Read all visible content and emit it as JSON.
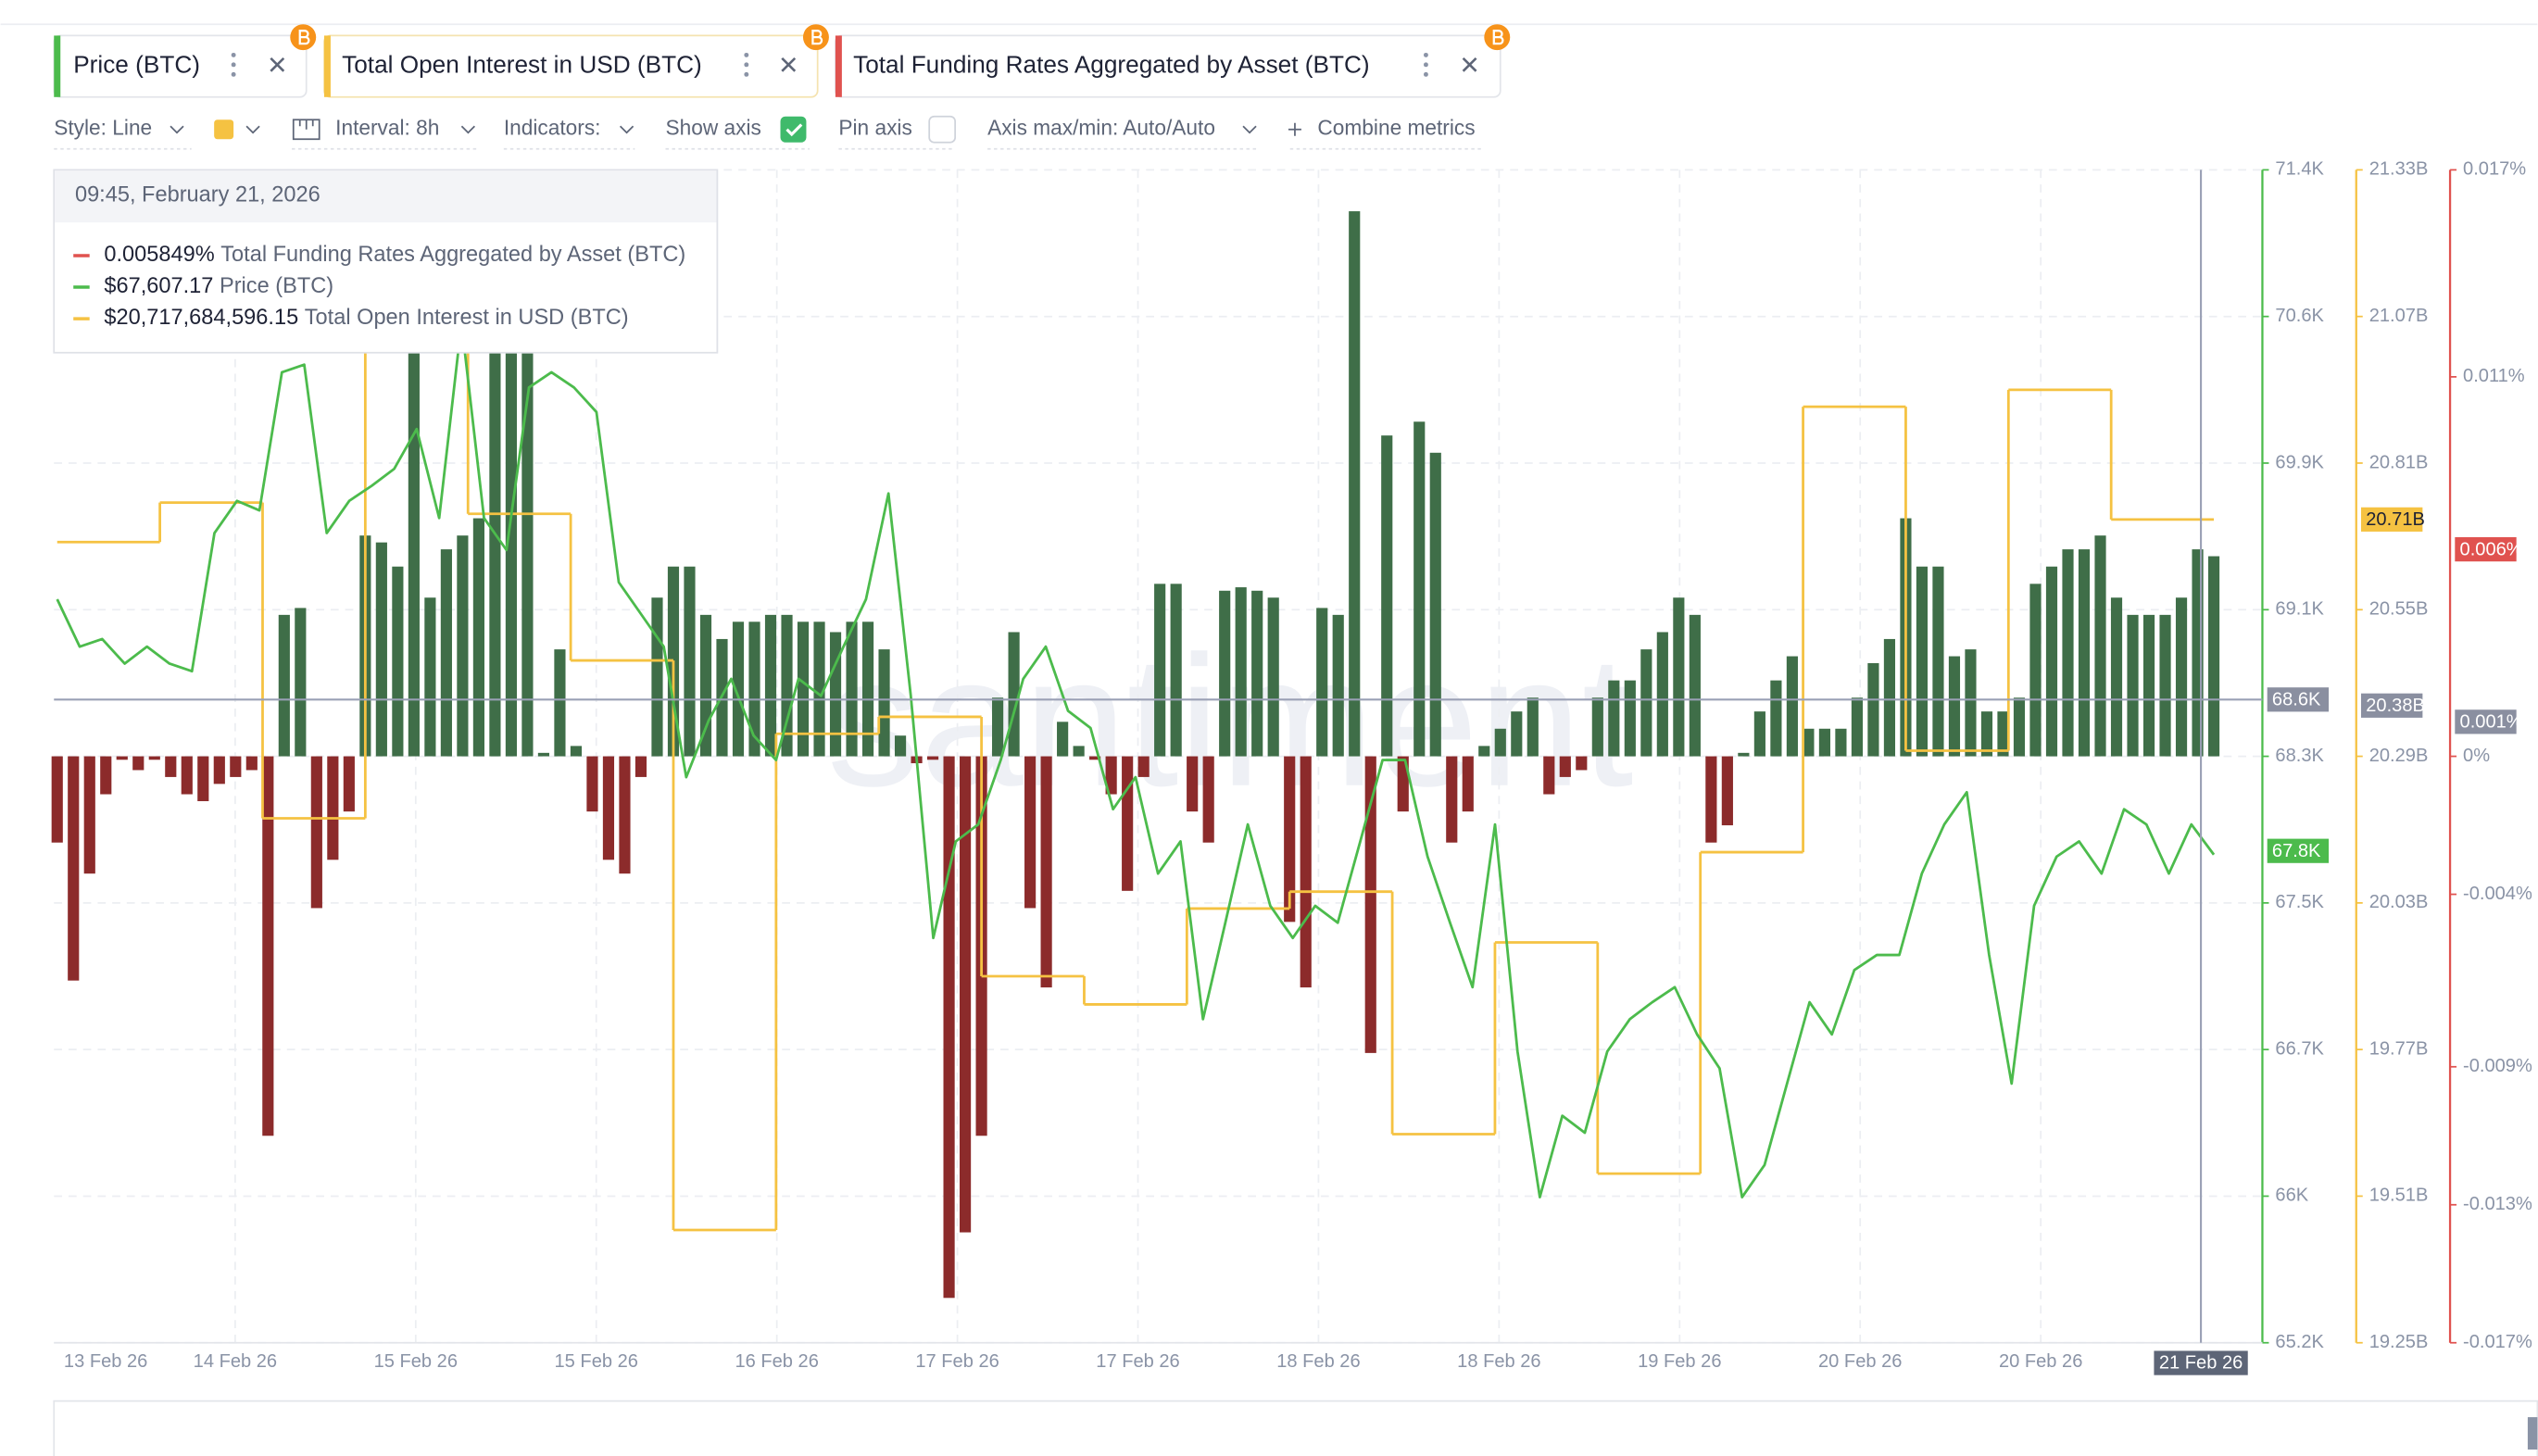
{
  "toolbar": {
    "style": "Style: Line",
    "interval": "Interval: 8h",
    "indicators": "Indicators:",
    "show_axis": "Show axis",
    "pin_axis": "Pin axis",
    "axis_maxmin": "Axis max/min: Auto/Auto",
    "combine": "Combine metrics"
  },
  "tooltip": {
    "time": "09:45, February 21, 2026",
    "rows": [
      {
        "series": 2,
        "value": "0.005849%"
      },
      {
        "series": 0,
        "value": "$67,607.17"
      },
      {
        "series": 1,
        "value": "$20,717,684,596.15"
      }
    ]
  },
  "chart_data": {
    "type": "line",
    "watermark": "santiment",
    "x_labels": [
      "13 Feb 26",
      "14 Feb 26",
      "15 Feb 26",
      "15 Feb 26",
      "16 Feb 26",
      "17 Feb 26",
      "17 Feb 26",
      "18 Feb 26",
      "18 Feb 26",
      "19 Feb 26",
      "20 Feb 26",
      "20 Feb 26"
    ],
    "crosshair_label": "21 Feb 26",
    "grid": true,
    "ylim": [
      65.2,
      71.4
    ],
    "yticks": [
      {
        "value": 65.2,
        "label": "65.2K"
      },
      {
        "value": 65.975,
        "label": "66K"
      },
      {
        "value": 66.75,
        "label": "66.7K"
      },
      {
        "value": 67.525,
        "label": "67.5K"
      },
      {
        "value": 68.3,
        "label": "68.3K"
      },
      {
        "value": 69.075,
        "label": "69.1K"
      },
      {
        "value": 69.85,
        "label": "69.9K"
      },
      {
        "value": 70.625,
        "label": "70.6K"
      },
      {
        "value": 71.4,
        "label": "71.4K"
      }
    ],
    "y2lim": [
      19.25,
      21.33
    ],
    "y2ticks": [
      {
        "value": 19.25,
        "label": "19.25B"
      },
      {
        "value": 19.51,
        "label": "19.51B"
      },
      {
        "value": 19.77,
        "label": "19.77B"
      },
      {
        "value": 20.03,
        "label": "20.03B"
      },
      {
        "value": 20.29,
        "label": "20.29B"
      },
      {
        "value": 20.55,
        "label": "20.55B"
      },
      {
        "value": 20.81,
        "label": "20.81B"
      },
      {
        "value": 21.07,
        "label": "21.07B"
      },
      {
        "value": 21.33,
        "label": "21.33B"
      }
    ],
    "y3lim": [
      -0.017,
      0.017
    ],
    "y3ticks": [
      {
        "value": -0.017,
        "label": "-0.017%"
      },
      {
        "value": -0.013,
        "label": "-0.013%"
      },
      {
        "value": -0.009,
        "label": "-0.009%"
      },
      {
        "value": -0.004,
        "label": "-0.004%"
      },
      {
        "value": 0,
        "label": "0%"
      },
      {
        "value": 0.011,
        "label": "0.011%"
      },
      {
        "value": 0.017,
        "label": "0.017%"
      }
    ],
    "badges": [
      {
        "axis": "y",
        "value": 68.6,
        "label": "68.6K",
        "color": "#8a8fa0",
        "crosshair": true
      },
      {
        "axis": "y",
        "value": 67.8,
        "label": "67.8K",
        "color": "#4cbb4c"
      },
      {
        "axis": "y2",
        "value": 20.71,
        "label": "20.71B",
        "color": "#f5c242"
      },
      {
        "axis": "y2",
        "value": 20.38,
        "label": "20.38B",
        "color": "#8a8fa0"
      },
      {
        "axis": "y3",
        "value": 0.006,
        "label": "0.006%",
        "color": "#e0524f"
      },
      {
        "axis": "y3",
        "value": 0.001,
        "label": "0.001%",
        "color": "#8a8fa0"
      }
    ],
    "series": [
      {
        "name": "Price (BTC)",
        "color": "#4cbb4c",
        "axis": "y",
        "style": "line",
        "values": [
          69.13,
          68.88,
          68.92,
          68.79,
          68.88,
          68.79,
          68.75,
          69.48,
          69.65,
          69.6,
          70.33,
          70.37,
          69.48,
          69.65,
          69.73,
          69.82,
          70.03,
          69.56,
          70.59,
          69.56,
          69.39,
          70.25,
          70.33,
          70.25,
          70.12,
          69.22,
          69.05,
          68.88,
          68.19,
          68.49,
          68.71,
          68.41,
          68.28,
          68.71,
          68.62,
          68.88,
          69.13,
          69.69,
          68.62,
          67.34,
          67.85,
          67.94,
          68.28,
          68.71,
          68.88,
          68.54,
          68.45,
          68.02,
          68.19,
          67.68,
          67.85,
          66.91,
          67.42,
          67.94,
          67.51,
          67.34,
          67.51,
          67.42,
          67.85,
          68.28,
          68.28,
          67.77,
          67.42,
          67.08,
          67.94,
          66.74,
          65.97,
          66.4,
          66.31,
          66.74,
          66.91,
          67.0,
          67.08,
          66.83,
          66.65,
          65.97,
          66.14,
          66.57,
          67.0,
          66.83,
          67.17,
          67.25,
          67.25,
          67.68,
          67.94,
          68.11,
          67.25,
          66.57,
          67.51,
          67.77,
          67.85,
          67.68,
          68.02,
          67.94,
          67.68,
          67.94,
          67.78
        ]
      },
      {
        "name": "Total Open Interest in USD (BTC)",
        "color": "#f5c242",
        "axis": "y2",
        "style": "step",
        "values": [
          20.67,
          20.74,
          20.18,
          21.07,
          20.72,
          20.46,
          19.45,
          20.33,
          20.36,
          19.9,
          19.85,
          20.02,
          20.05,
          19.62,
          19.96,
          19.55,
          20.12,
          20.91,
          20.3,
          20.94,
          20.71
        ]
      },
      {
        "name": "Total Funding Rates Aggregated by Asset (BTC)",
        "color": "#e0524f",
        "axis": "y3",
        "style": "bar",
        "positive_color": "#3f6e48",
        "negative_color": "#8c2b2b",
        "values": [
          -0.0025,
          -0.0065,
          -0.0034,
          -0.0011,
          -0.0001,
          -0.0004,
          -0.0001,
          -0.0006,
          -0.0011,
          -0.0013,
          -0.0008,
          -0.0006,
          -0.0004,
          -0.011,
          0.0041,
          0.0043,
          -0.0044,
          -0.003,
          -0.0016,
          0.0064,
          0.0062,
          0.0055,
          0.0125,
          0.0046,
          0.006,
          0.0064,
          0.0069,
          0.014,
          0.0133,
          0.0125,
          0.0001,
          0.0031,
          0.0003,
          -0.0016,
          -0.003,
          -0.0034,
          -0.0006,
          0.0046,
          0.0055,
          0.0055,
          0.0041,
          0.0034,
          0.0039,
          0.0039,
          0.0041,
          0.0041,
          0.0039,
          0.0039,
          0.0036,
          0.0039,
          0.0039,
          0.0031,
          0.0006,
          -0.0002,
          -0.0001,
          -0.0157,
          -0.0138,
          -0.011,
          0.0017,
          0.0036,
          -0.0044,
          -0.0067,
          0.001,
          0.0003,
          -0.0001,
          -0.0011,
          -0.0039,
          -0.0006,
          0.005,
          0.005,
          -0.0016,
          -0.0025,
          0.0048,
          0.0049,
          0.0048,
          0.0046,
          -0.0048,
          -0.0067,
          0.0043,
          0.0041,
          0.0158,
          -0.0086,
          0.0093,
          -0.0016,
          0.0097,
          0.0088,
          -0.0025,
          -0.0016,
          0.0003,
          0.0008,
          0.0013,
          0.0017,
          -0.0011,
          -0.0006,
          -0.0004,
          0.0017,
          0.0022,
          0.0022,
          0.0031,
          0.0036,
          0.0046,
          0.0041,
          -0.0025,
          -0.002,
          0.0001,
          0.0013,
          0.0022,
          0.0029,
          0.0008,
          0.0008,
          0.0008,
          0.0017,
          0.0027,
          0.0034,
          0.0069,
          0.0055,
          0.0055,
          0.0029,
          0.0031,
          0.0013,
          0.0013,
          0.0017,
          0.005,
          0.0055,
          0.006,
          0.006,
          0.0064,
          0.0046,
          0.0041,
          0.0041,
          0.0041,
          0.0046,
          0.006,
          0.0058
        ]
      }
    ]
  }
}
